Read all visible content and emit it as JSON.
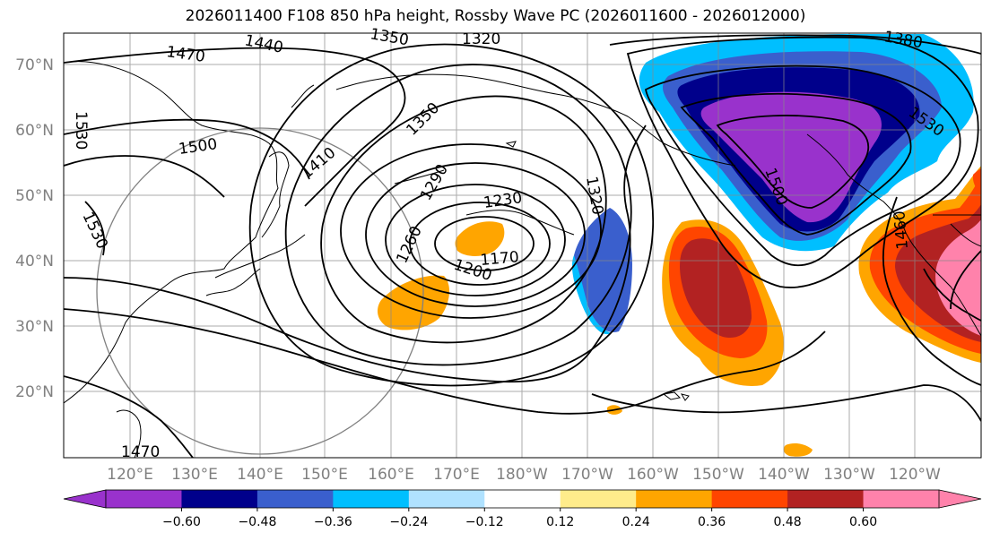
{
  "title": "2026011400 F108 850 hPa height, Rossby Wave PC (2026011600 - 2026012000)",
  "lat_labels": [
    "70°N",
    "60°N",
    "50°N",
    "40°N",
    "30°N",
    "20°N"
  ],
  "lon_labels": [
    "120°E",
    "130°E",
    "140°E",
    "150°E",
    "160°E",
    "170°E",
    "180°W",
    "170°W",
    "160°W",
    "150°W",
    "140°W",
    "130°W",
    "120°W"
  ],
  "contour_labels": [
    "1470",
    "1440",
    "1350",
    "1320",
    "1380",
    "1530",
    "1500",
    "1410",
    "1350",
    "1290",
    "1230",
    "1320",
    "1260",
    "1170",
    "1200",
    "1530",
    "1500",
    "1530",
    "1460",
    "1470"
  ],
  "colorbar": {
    "colors": [
      "#9932cc",
      "#00008b",
      "#3a5fcd",
      "#00bfff",
      "#b0e2ff",
      "#ffffff",
      "#ffec8b",
      "#ffa500",
      "#ff4500",
      "#b22222",
      "#ff82ab"
    ],
    "under_color": "#9932cc",
    "over_color": "#ff82ab",
    "tick_labels": [
      "−0.60",
      "−0.48",
      "−0.36",
      "−0.24",
      "−0.12",
      "0.12",
      "0.24",
      "0.36",
      "0.48",
      "0.60"
    ]
  }
}
